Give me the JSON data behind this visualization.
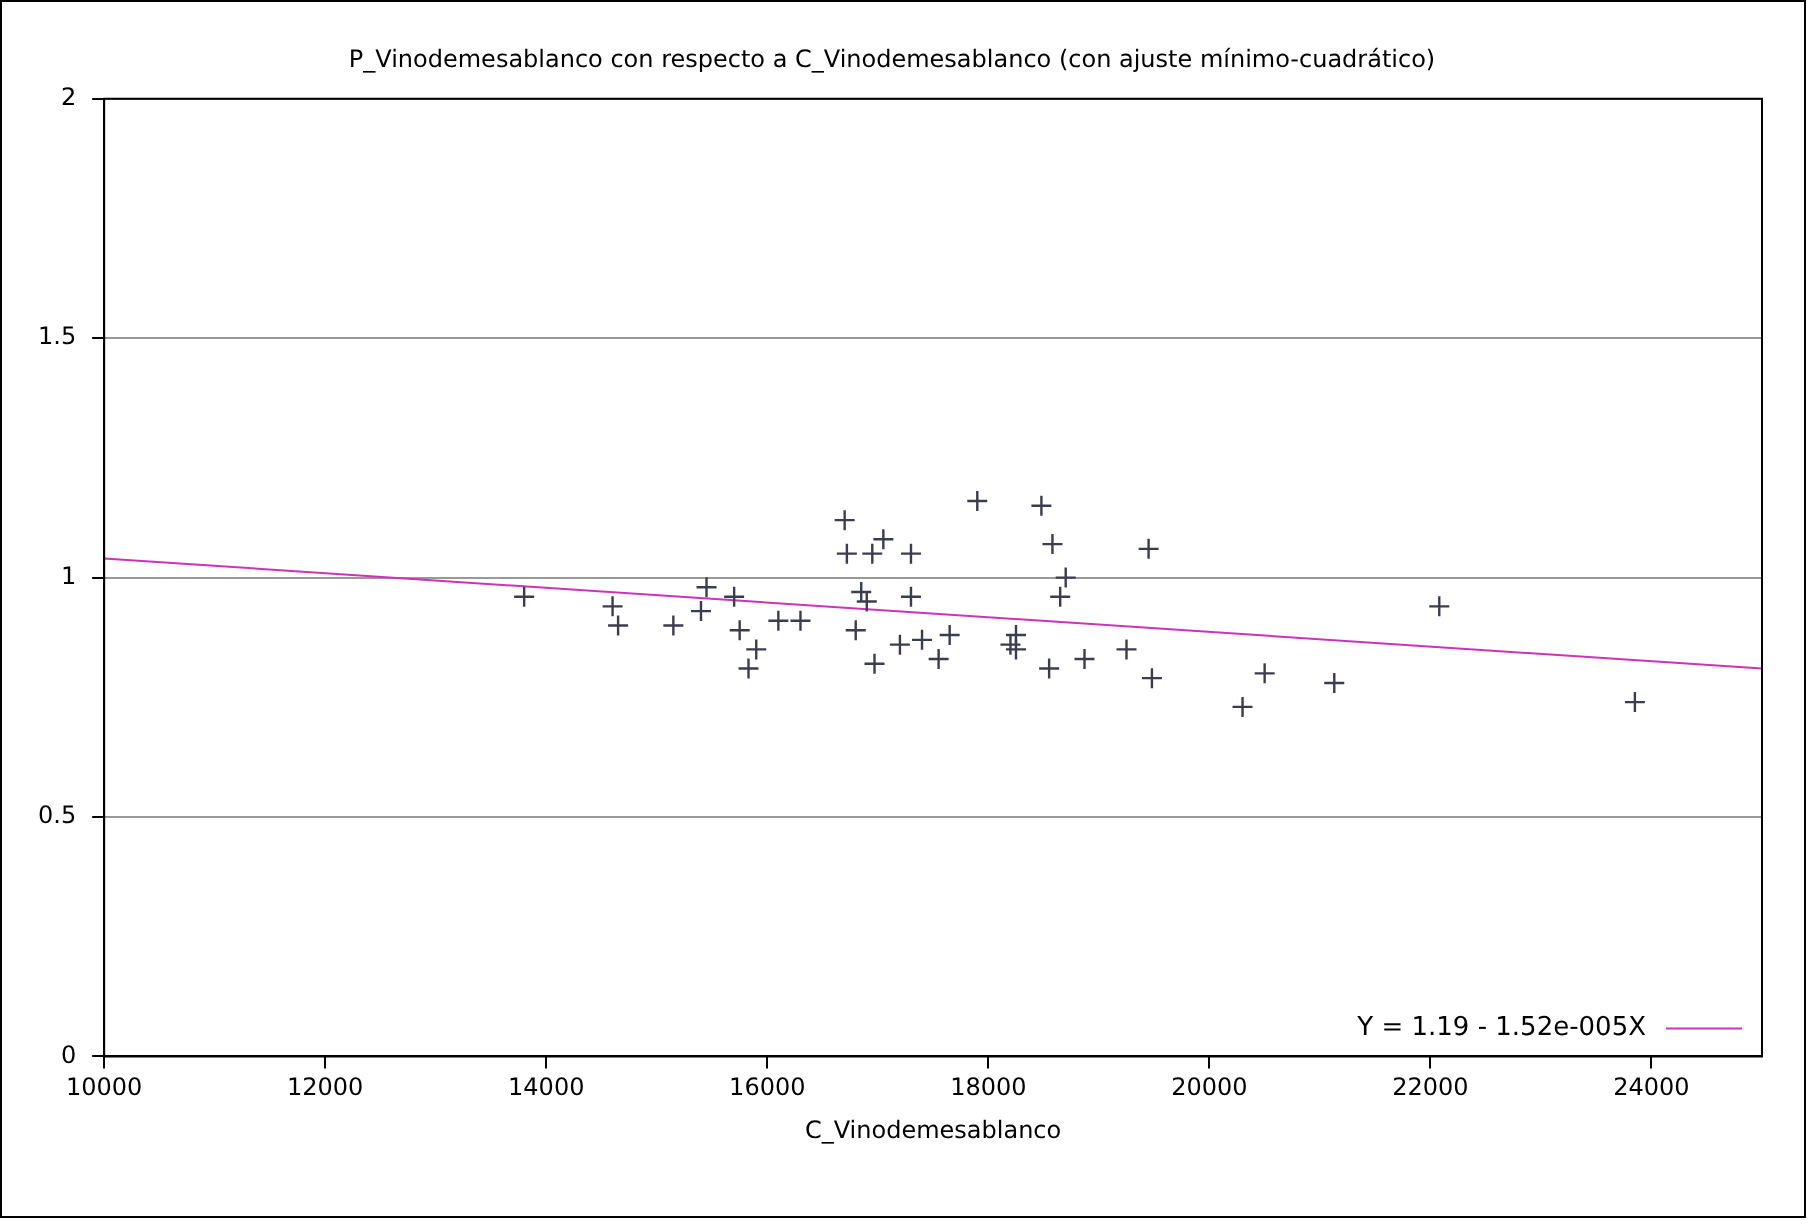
{
  "chart_data": {
    "type": "scatter",
    "title": "P_Vinodemesablanco con respecto a C_Vinodemesablanco (con ajuste mínimo-cuadrático)",
    "xlabel": "C_Vinodemesablanco",
    "xlim": [
      10000,
      25000
    ],
    "xticks": [
      10000,
      12000,
      14000,
      16000,
      18000,
      20000,
      22000,
      24000
    ],
    "ylim": [
      0,
      2
    ],
    "yticks": [
      0,
      0.5,
      1,
      1.5,
      2
    ],
    "grid": "y",
    "marker": "cross",
    "legend": "bottom right",
    "series": [
      {
        "color": "#3c3c50",
        "x": [
          13800,
          14600,
          14650,
          15150,
          15400,
          15450,
          15700,
          15750,
          15830,
          15900,
          16100,
          16300,
          16700,
          16720,
          16800,
          16850,
          16900,
          16950,
          16970,
          17050,
          17200,
          17300,
          17300,
          17400,
          17550,
          17650,
          17900,
          18200,
          18250,
          18250,
          18480,
          18550,
          18580,
          18650,
          18700,
          18870,
          19250,
          19450,
          19480,
          20300,
          20500,
          21130,
          22080,
          23850
        ],
        "values": [
          0.96,
          0.94,
          0.9,
          0.9,
          0.93,
          0.98,
          0.96,
          0.89,
          0.81,
          0.85,
          0.91,
          0.91,
          1.12,
          1.05,
          0.89,
          0.97,
          0.95,
          1.05,
          0.82,
          1.08,
          0.86,
          1.05,
          0.96,
          0.87,
          0.83,
          0.88,
          1.16,
          0.86,
          0.88,
          0.85,
          1.15,
          0.81,
          1.07,
          0.96,
          1.0,
          0.83,
          0.85,
          1.06,
          0.79,
          0.73,
          0.8,
          0.78,
          0.94,
          0.74
        ]
      },
      {
        "type": "line",
        "name": "Y = 1.19 - 1.52e-005X",
        "color": "#cc33bb",
        "x": [
          10000,
          25000
        ],
        "values": [
          1.04,
          0.81
        ],
        "marker": "none"
      }
    ]
  }
}
